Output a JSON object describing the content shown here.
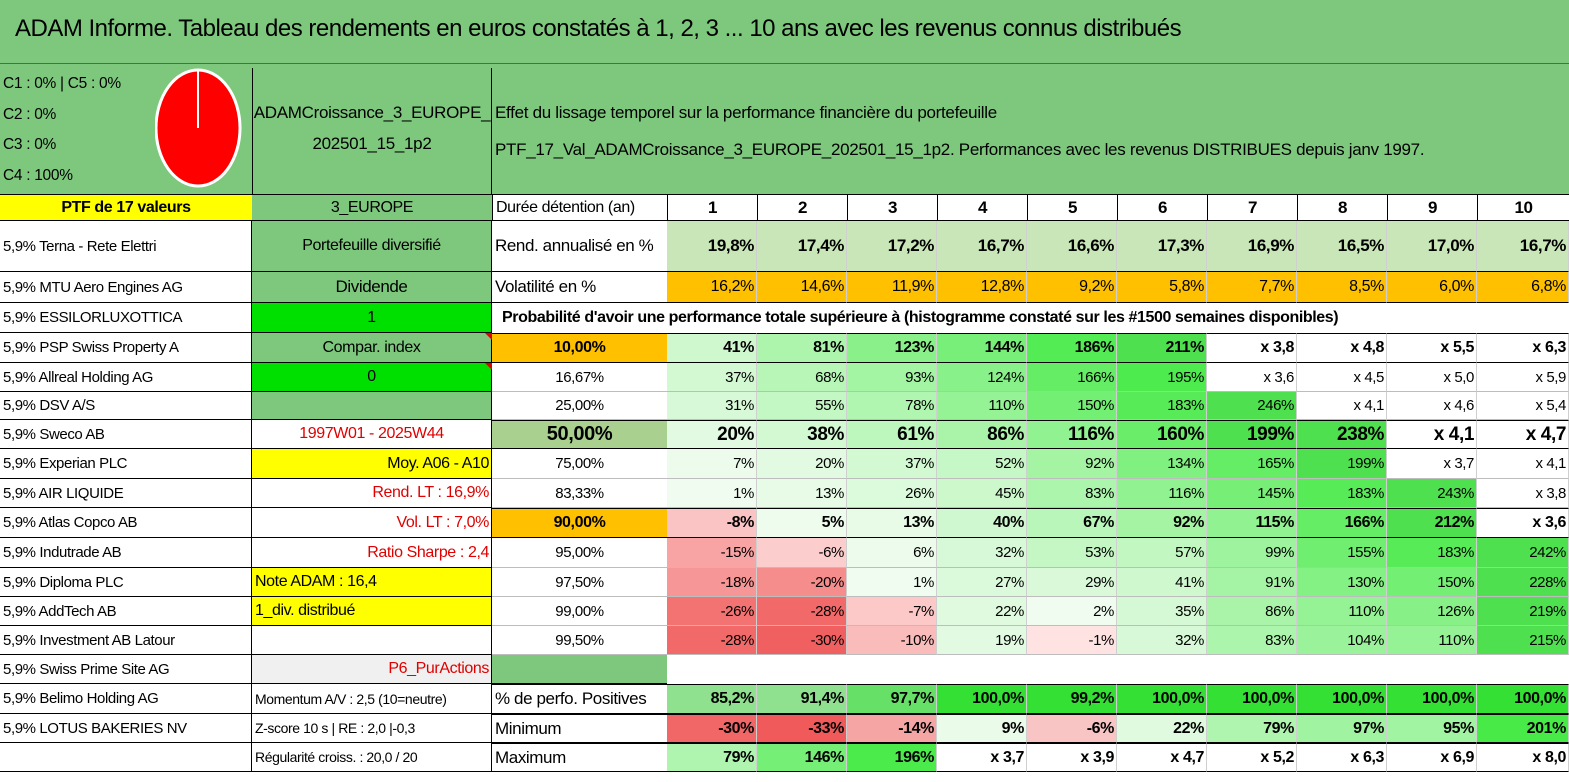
{
  "title": "ADAM Informe. Tableau des rendements en euros constatés à 1, 2, 3 ... 10 ans avec les revenus connus distribués",
  "allocation": {
    "c1c5": "C1 : 0% | C5 : 0%",
    "c2": "C2 : 0%",
    "c3": "C3 : 0%",
    "c4": "C4 : 100%",
    "pie_color": "#ff0000",
    "c4_share": 100
  },
  "ptf_count": "PTF de 17 valeurs",
  "portfolio_name": "ADAMCroissance_3_EUROPE_202501_15_1p2",
  "effect_title": "Effet du lissage temporel sur la performance financière du portefeuille",
  "effect_subtitle": "PTF_17_Val_ADAMCroissance_3_EUROPE_202501_15_1p2. Performances avec les revenus DISTRIBUES depuis janv 1997.",
  "holdings": [
    "5,9% Terna - Rete Elettri",
    "5,9% MTU Aero Engines AG",
    "5,9% ESSILORLUXOTTICA",
    "5,9% PSP Swiss Property A",
    "5,9% Allreal Holding AG",
    "5,9% DSV A/S",
    "5,9% Sweco AB",
    "5,9% Experian PLC",
    "5,9% AIR LIQUIDE",
    "5,9% Atlas Copco AB",
    "5,9% Indutrade AB",
    "5,9% Diploma PLC",
    "5,9% AddTech AB",
    "5,9% Investment AB Latour",
    "5,9% Swiss Prime Site AG",
    "5,9% Belimo Holding AG",
    "5,9% LOTUS BAKERIES NV",
    ""
  ],
  "info": {
    "region": "3_EUROPE",
    "diversified": "Portefeuille diversifié",
    "dividend": "Dividende",
    "dividend_flag": "1",
    "compar_index": "Compar. index",
    "compar_flag": "0",
    "period": "1997W01 - 2025W44",
    "moy": "Moy. A06 - A10",
    "rend_lt": "Rend. LT : 16,9%",
    "vol_lt": "Vol. LT : 7,0%",
    "sharpe": "Ratio Sharpe : 2,4",
    "note": "Note ADAM : 16,4",
    "div_distrib": "1_div. distribué",
    "p6": "P6_PurActions",
    "momentum": "Momentum A/V : 2,5 (10=neutre)",
    "zscore": "Z-score 10 s | RE : 2,0 |-0,3",
    "regularite": "Régularité croiss. : 20,0 / 20"
  },
  "table": {
    "duration_label": "Durée détention (an)",
    "years": [
      "1",
      "2",
      "3",
      "4",
      "5",
      "6",
      "7",
      "8",
      "9",
      "10"
    ],
    "rend_label": "Rend. annualisé en %",
    "rend": [
      "19,8%",
      "17,4%",
      "17,2%",
      "16,7%",
      "16,6%",
      "17,3%",
      "16,9%",
      "16,5%",
      "17,0%",
      "16,7%"
    ],
    "vol_label": "Volatilité en %",
    "vol": [
      "16,2%",
      "14,6%",
      "11,9%",
      "12,8%",
      "9,2%",
      "5,8%",
      "7,7%",
      "8,5%",
      "6,0%",
      "6,8%"
    ],
    "prob_title": "Probabilité d'avoir une performance totale supérieure à (histogramme constaté sur les #1500 semaines disponibles)",
    "prob_rows": [
      {
        "p": "10,00%",
        "v": [
          "41%",
          "81%",
          "123%",
          "144%",
          "186%",
          "211%",
          "x 3,8",
          "x 4,8",
          "x 5,5",
          "x 6,3"
        ]
      },
      {
        "p": "16,67%",
        "v": [
          "37%",
          "68%",
          "93%",
          "124%",
          "166%",
          "195%",
          "x 3,6",
          "x 4,5",
          "x 5,0",
          "x 5,9"
        ]
      },
      {
        "p": "25,00%",
        "v": [
          "31%",
          "55%",
          "78%",
          "110%",
          "150%",
          "183%",
          "246%",
          "x 4,1",
          "x 4,6",
          "x 5,4"
        ]
      },
      {
        "p": "50,00%",
        "v": [
          "20%",
          "38%",
          "61%",
          "86%",
          "116%",
          "160%",
          "199%",
          "238%",
          "x 4,1",
          "x 4,7"
        ]
      },
      {
        "p": "75,00%",
        "v": [
          "7%",
          "20%",
          "37%",
          "52%",
          "92%",
          "134%",
          "165%",
          "199%",
          "x 3,7",
          "x 4,1"
        ]
      },
      {
        "p": "83,33%",
        "v": [
          "1%",
          "13%",
          "26%",
          "45%",
          "83%",
          "116%",
          "145%",
          "183%",
          "243%",
          "x 3,8"
        ]
      },
      {
        "p": "90,00%",
        "v": [
          "-8%",
          "5%",
          "13%",
          "40%",
          "67%",
          "92%",
          "115%",
          "166%",
          "212%",
          "x 3,6"
        ]
      },
      {
        "p": "95,00%",
        "v": [
          "-15%",
          "-6%",
          "6%",
          "32%",
          "53%",
          "57%",
          "99%",
          "155%",
          "183%",
          "242%"
        ]
      },
      {
        "p": "97,50%",
        "v": [
          "-18%",
          "-20%",
          "1%",
          "27%",
          "29%",
          "41%",
          "91%",
          "130%",
          "150%",
          "228%"
        ]
      },
      {
        "p": "99,00%",
        "v": [
          "-26%",
          "-28%",
          "-7%",
          "22%",
          "2%",
          "35%",
          "86%",
          "110%",
          "126%",
          "219%"
        ]
      },
      {
        "p": "99,50%",
        "v": [
          "-28%",
          "-30%",
          "-10%",
          "19%",
          "-1%",
          "32%",
          "83%",
          "104%",
          "110%",
          "215%"
        ]
      }
    ],
    "pos_label": "% de perfo. Positives",
    "pos": [
      "85,2%",
      "91,4%",
      "97,7%",
      "100,0%",
      "99,2%",
      "100,0%",
      "100,0%",
      "100,0%",
      "100,0%",
      "100,0%"
    ],
    "min_label": "Minimum",
    "min": [
      "-30%",
      "-33%",
      "-14%",
      "9%",
      "-6%",
      "22%",
      "79%",
      "97%",
      "95%",
      "201%"
    ],
    "max_label": "Maximum",
    "max": [
      "79%",
      "146%",
      "196%",
      "x 3,7",
      "x 3,9",
      "x 4,7",
      "x 5,2",
      "x 6,3",
      "x 6,9",
      "x 8,0"
    ]
  },
  "colors": {
    "header_green": "#7ec87e",
    "yellow": "#ffff00",
    "orange": "#ffc000",
    "bright_green": "#00e000",
    "red_text": "#e00000"
  }
}
